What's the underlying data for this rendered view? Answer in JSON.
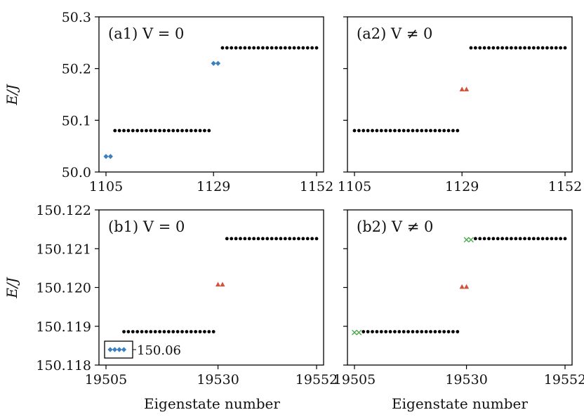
{
  "figure": {
    "y_axis_label": "E/J",
    "x_axis_label": "Eigenstate number",
    "colors": {
      "dot": "#000000",
      "diamond": "#3a7fbf",
      "triangle": "#d0543c",
      "cross": "#4aa84a"
    }
  },
  "chart_data": [
    {
      "type": "scatter",
      "id": "a1",
      "panel_label": "(a1) V = 0",
      "xlim": [
        1105,
        1152
      ],
      "ylim": [
        50.0,
        50.3
      ],
      "xticks": [
        "1105",
        "1129",
        "1152"
      ],
      "yticks": [
        "50.0",
        "50.1",
        "50.2",
        "50.3"
      ],
      "series": [
        {
          "marker": "diamond",
          "color": "#3a7fbf",
          "x_range": [
            1105,
            1106
          ],
          "y": 50.03
        },
        {
          "marker": "dot",
          "color": "#000000",
          "x_range": [
            1107,
            1128
          ],
          "y": 50.08
        },
        {
          "marker": "diamond",
          "color": "#3a7fbf",
          "x_range": [
            1129,
            1130
          ],
          "y": 50.21
        },
        {
          "marker": "dot",
          "color": "#000000",
          "x_range": [
            1131,
            1152
          ],
          "y": 50.24
        }
      ]
    },
    {
      "type": "scatter",
      "id": "a2",
      "panel_label": "(a2) V ≠ 0",
      "xlim": [
        1105,
        1152
      ],
      "ylim": [
        50.0,
        50.3
      ],
      "xticks": [
        "1105",
        "1129",
        "1152"
      ],
      "yticks": [],
      "series": [
        {
          "marker": "dot",
          "color": "#000000",
          "x_range": [
            1105,
            1128
          ],
          "y": 50.08
        },
        {
          "marker": "triangle",
          "color": "#d0543c",
          "x_range": [
            1129,
            1130
          ],
          "y": 50.16
        },
        {
          "marker": "dot",
          "color": "#000000",
          "x_range": [
            1131,
            1152
          ],
          "y": 50.24
        }
      ]
    },
    {
      "type": "scatter",
      "id": "b1",
      "panel_label": "(b1) V = 0",
      "xlim": [
        19505,
        19552
      ],
      "ylim": [
        150.118,
        150.122
      ],
      "xticks": [
        "19505",
        "19530",
        "19552"
      ],
      "yticks": [
        "150.118",
        "150.119",
        "150.120",
        "150.121",
        "150.122"
      ],
      "series": [
        {
          "marker": "diamond",
          "color": "#3a7fbf",
          "x_range": [
            19505,
            19508
          ],
          "y": 150.06,
          "inset": true
        },
        {
          "marker": "dot",
          "color": "#000000",
          "x_range": [
            19509,
            19529
          ],
          "y": 150.11886
        },
        {
          "marker": "triangle",
          "color": "#d0543c",
          "x_range": [
            19530,
            19531
          ],
          "y": 150.12008
        },
        {
          "marker": "dot",
          "color": "#000000",
          "x_range": [
            19532,
            19552
          ],
          "y": 150.12126
        }
      ],
      "inset_value_label": "150.06"
    },
    {
      "type": "scatter",
      "id": "b2",
      "panel_label": "(b2) V ≠ 0",
      "xlim": [
        19505,
        19552
      ],
      "ylim": [
        150.118,
        150.122
      ],
      "xticks": [
        "19505",
        "19530",
        "19552"
      ],
      "yticks": [],
      "series": [
        {
          "marker": "cross",
          "color": "#4aa84a",
          "x_range": [
            19505,
            19506
          ],
          "y": 150.11884
        },
        {
          "marker": "dot",
          "color": "#000000",
          "x_range": [
            19507,
            19528
          ],
          "y": 150.11886
        },
        {
          "marker": "triangle",
          "color": "#d0543c",
          "x_range": [
            19529,
            19530
          ],
          "y": 150.12002
        },
        {
          "marker": "cross",
          "color": "#4aa84a",
          "x_range": [
            19530,
            19531
          ],
          "y": 150.12123
        },
        {
          "marker": "dot",
          "color": "#000000",
          "x_range": [
            19532,
            19552
          ],
          "y": 150.12126
        }
      ]
    }
  ]
}
